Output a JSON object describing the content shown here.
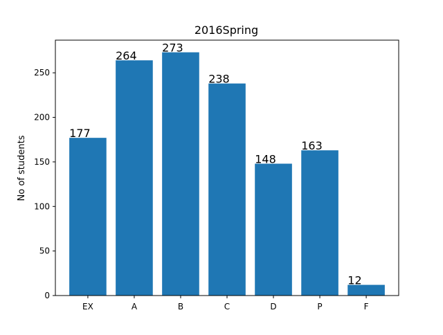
{
  "chart_data": {
    "type": "bar",
    "title": "2016Spring",
    "xlabel": "",
    "ylabel": "No of students",
    "categories": [
      "EX",
      "A",
      "B",
      "C",
      "D",
      "P",
      "F"
    ],
    "values": [
      177,
      264,
      273,
      238,
      148,
      163,
      12
    ],
    "data_labels": [
      "177",
      "264",
      "273",
      "238",
      "148",
      "163",
      "12"
    ],
    "yticks": [
      0,
      50,
      100,
      150,
      200,
      250
    ],
    "ylim": [
      0,
      286.65
    ],
    "grid": false,
    "bar_color": "#1f77b4"
  }
}
